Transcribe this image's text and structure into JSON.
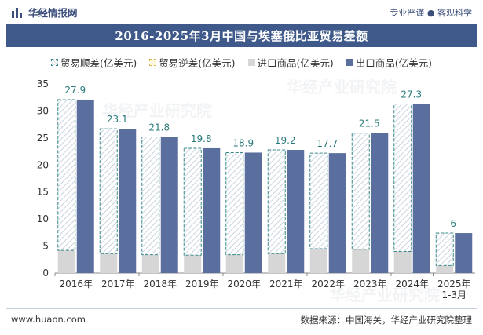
{
  "header": {
    "brand": "华经情报网",
    "slogan": "专业严谨 ● 客观科学"
  },
  "watermarks": [
    "华经产业研究院",
    "华经产业研究院",
    "华经产业研究院"
  ],
  "chart_data": {
    "type": "bar",
    "title": "2016-2025年3月中国与埃塞俄比亚贸易差额",
    "categories": [
      "2016年",
      "2017年",
      "2018年",
      "2019年",
      "2020年",
      "2021年",
      "2022年",
      "2023年",
      "2024年",
      "2025年\n1-3月"
    ],
    "series": [
      {
        "name": "贸易顺差(亿美元)",
        "values": [
          27.9,
          23.1,
          21.8,
          19.8,
          18.9,
          19.2,
          17.7,
          21.5,
          27.3,
          6
        ]
      },
      {
        "name": "贸易逆差(亿美元)",
        "values": [
          0,
          0,
          0,
          0,
          0,
          0,
          0,
          0,
          0,
          0
        ]
      },
      {
        "name": "进口商品(亿美元)",
        "values": [
          4.2,
          3.6,
          3.4,
          3.3,
          3.4,
          3.6,
          4.5,
          4.4,
          4.0,
          1.4
        ]
      },
      {
        "name": "出口商品(亿美元)",
        "values": [
          32.1,
          26.7,
          25.2,
          23.1,
          22.3,
          22.8,
          22.2,
          25.9,
          31.3,
          7.4
        ]
      }
    ],
    "data_labels": [
      "27.9",
      "23.1",
      "21.8",
      "19.8",
      "18.9",
      "19.2",
      "17.7",
      "21.5",
      "27.3",
      "6"
    ],
    "ylim": [
      0,
      35
    ],
    "yticks": [
      "0",
      "5",
      "10",
      "15",
      "20",
      "25",
      "30",
      "35"
    ],
    "legend_position": "top",
    "colors": {
      "export": "#5b6f9e",
      "import": "#d6d6d6",
      "surplus_hatch": "#c9d4e0",
      "surplus_border": "#3a8a8a",
      "deficit_border": "#d8b84a",
      "label": "#2a7a7a",
      "title_bg": "#3f5a8a"
    }
  },
  "footer": {
    "website": "www.huaon.com",
    "source": "数据来源：中国海关，华经产业研究院整理"
  }
}
